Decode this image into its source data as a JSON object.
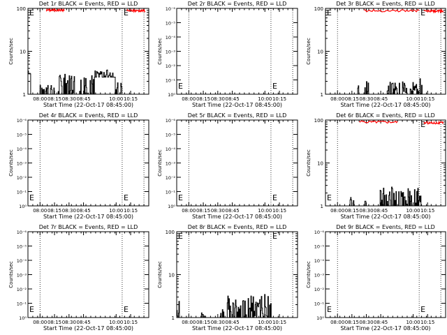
{
  "chart_data": [
    {
      "type": "line",
      "title": "Det 1r BLACK = Events, RED = LLD",
      "xlabel": "Start Time (22-Oct-17 08:45:00)",
      "ylabel": "Counts/sec",
      "scale": "log",
      "ytick_labels": [
        "1",
        "10",
        "100"
      ],
      "xtick_labels": [
        "08:00",
        "08:15",
        "08:30",
        "08:45",
        "10:00",
        "10:15"
      ],
      "markers": [
        {
          "label": "E",
          "x": 0.0,
          "y": "top"
        },
        {
          "label": "E",
          "x": 0.78,
          "y": "top"
        }
      ],
      "series": [
        {
          "name": "BLACK = Events",
          "color": "#000000",
          "profile": "1r"
        },
        {
          "name": "RED = LLD",
          "color": "#ff0000",
          "segments": [
            {
              "from": 0.15,
              "to": 0.3,
              "level": 95
            },
            {
              "from": 0.82,
              "to": 0.97,
              "level": 92
            }
          ]
        }
      ]
    },
    {
      "type": "line",
      "title": "Det 2r BLACK = Events, RED = LLD",
      "xlabel": "Start Time (22-Oct-17 08:45:00)",
      "ylabel": "Counts/sec",
      "scale": "exp",
      "ytick_labels": [
        "10⁰",
        "10⁻¹",
        "10⁻²",
        "10⁻³",
        "10⁻⁴",
        "10⁻⁵",
        "10⁻⁶"
      ],
      "xtick_labels": [
        "08:00",
        "08:15",
        "08:30",
        "08:45",
        "10:00",
        "10:15"
      ],
      "markers": [
        {
          "label": "E",
          "x": 0.0,
          "y": "bottom"
        },
        {
          "label": "E",
          "x": 0.78,
          "y": "bottom"
        }
      ],
      "series": []
    },
    {
      "type": "line",
      "title": "Det 3r BLACK = Events, RED = LLD",
      "xlabel": "Start Time (22-Oct-17 08:45:00)",
      "ylabel": "Counts/sec",
      "scale": "log",
      "ytick_labels": [
        "1",
        "10",
        "100"
      ],
      "xtick_labels": [
        "08:00",
        "08:15",
        "08:30",
        "08:45",
        "10:00",
        "10:15"
      ],
      "markers": [
        {
          "label": "E",
          "x": 0.0,
          "y": "top"
        },
        {
          "label": "E",
          "x": 0.78,
          "y": "top"
        }
      ],
      "series": [
        {
          "name": "BLACK = Events",
          "color": "#000000",
          "profile": "3r"
        },
        {
          "name": "RED = LLD",
          "color": "#ff0000",
          "segments": [
            {
              "from": 0.32,
              "to": 0.78,
              "level": 92
            },
            {
              "from": 0.82,
              "to": 0.98,
              "level": 90
            }
          ]
        }
      ]
    },
    {
      "type": "line",
      "title": "Det 4r BLACK = Events, RED = LLD",
      "xlabel": "Start Time (22-Oct-17 08:45:00)",
      "ylabel": "Counts/sec",
      "scale": "exp",
      "ytick_labels": [
        "10⁰",
        "10⁻¹",
        "10⁻²",
        "10⁻³",
        "10⁻⁴",
        "10⁻⁵",
        "10⁻⁶"
      ],
      "xtick_labels": [
        "08:00",
        "08:15",
        "08:30",
        "08:45",
        "10:00",
        "10:15"
      ],
      "markers": [
        {
          "label": "E",
          "x": 0.0,
          "y": "bottom"
        },
        {
          "label": "E",
          "x": 0.78,
          "y": "bottom"
        }
      ],
      "series": []
    },
    {
      "type": "line",
      "title": "Det 5r BLACK = Events, RED = LLD",
      "xlabel": "Start Time (22-Oct-17 08:45:00)",
      "ylabel": "Counts/sec",
      "scale": "exp",
      "ytick_labels": [
        "10⁰",
        "10⁻¹",
        "10⁻²",
        "10⁻³",
        "10⁻⁴",
        "10⁻⁵",
        "10⁻⁶"
      ],
      "xtick_labels": [
        "08:00",
        "08:15",
        "08:30",
        "08:45",
        "10:00",
        "10:15"
      ],
      "markers": [
        {
          "label": "E",
          "x": 0.0,
          "y": "bottom"
        },
        {
          "label": "E",
          "x": 0.78,
          "y": "bottom"
        }
      ],
      "series": []
    },
    {
      "type": "line",
      "title": "Det 6r BLACK = Events, RED = LLD",
      "xlabel": "Start Time (22-Oct-17 08:45:00)",
      "ylabel": "Counts/sec",
      "scale": "log",
      "ytick_labels": [
        "1",
        "10",
        "100"
      ],
      "xtick_labels": [
        "08:00",
        "08:15",
        "08:30",
        "08:45",
        "10:00",
        "10:15"
      ],
      "markers": [
        {
          "label": "E",
          "x": 0.0,
          "y": "bottom"
        },
        {
          "label": "E",
          "x": 0.78,
          "y": "top"
        }
      ],
      "series": [
        {
          "name": "BLACK = Events",
          "color": "#000000",
          "profile": "6r"
        },
        {
          "name": "RED = LLD",
          "color": "#ff0000",
          "segments": [
            {
              "from": 0.28,
              "to": 0.6,
              "level": 95
            },
            {
              "from": 0.82,
              "to": 0.98,
              "level": 90
            }
          ]
        }
      ]
    },
    {
      "type": "line",
      "title": "Det 7r BLACK = Events, RED = LLD",
      "xlabel": "Start Time (22-Oct-17 08:45:00)",
      "ylabel": "Counts/sec",
      "scale": "exp",
      "ytick_labels": [
        "10⁰",
        "10⁻¹",
        "10⁻²",
        "10⁻³",
        "10⁻⁴",
        "10⁻⁵",
        "10⁻⁶"
      ],
      "xtick_labels": [
        "08:00",
        "08:15",
        "08:30",
        "08:45",
        "10:00",
        "10:15"
      ],
      "markers": [
        {
          "label": "E",
          "x": 0.0,
          "y": "bottom"
        },
        {
          "label": "E",
          "x": 0.78,
          "y": "bottom"
        }
      ],
      "series": []
    },
    {
      "type": "line",
      "title": "Det 8r BLACK = Events, RED = LLD",
      "xlabel": "Start Time (22-Oct-17 08:45:00)",
      "ylabel": "Counts/sec",
      "scale": "log",
      "ytick_labels": [
        "1",
        "10",
        "100"
      ],
      "xtick_labels": [
        "08:00",
        "08:15",
        "08:30",
        "08:45",
        "10:00",
        "10:15"
      ],
      "markers": [
        {
          "label": "E",
          "x": 0.0,
          "y": "top"
        },
        {
          "label": "E",
          "x": 0.78,
          "y": "top"
        }
      ],
      "series": [
        {
          "name": "BLACK = Events",
          "color": "#000000",
          "profile": "8r"
        }
      ]
    },
    {
      "type": "line",
      "title": "Det 9r BLACK = Events, RED = LLD",
      "xlabel": "Start Time (22-Oct-17 08:45:00)",
      "ylabel": "Counts/sec",
      "scale": "exp",
      "ytick_labels": [
        "10⁰",
        "10⁻¹",
        "10⁻²",
        "10⁻³",
        "10⁻⁴",
        "10⁻⁵",
        "10⁻⁶"
      ],
      "xtick_labels": [
        "08:00",
        "08:15",
        "08:30",
        "08:45",
        "10:00",
        "10:15"
      ],
      "markers": [
        {
          "label": "E",
          "x": 0.0,
          "y": "bottom"
        },
        {
          "label": "E",
          "x": 0.78,
          "y": "bottom"
        }
      ],
      "series": []
    }
  ]
}
